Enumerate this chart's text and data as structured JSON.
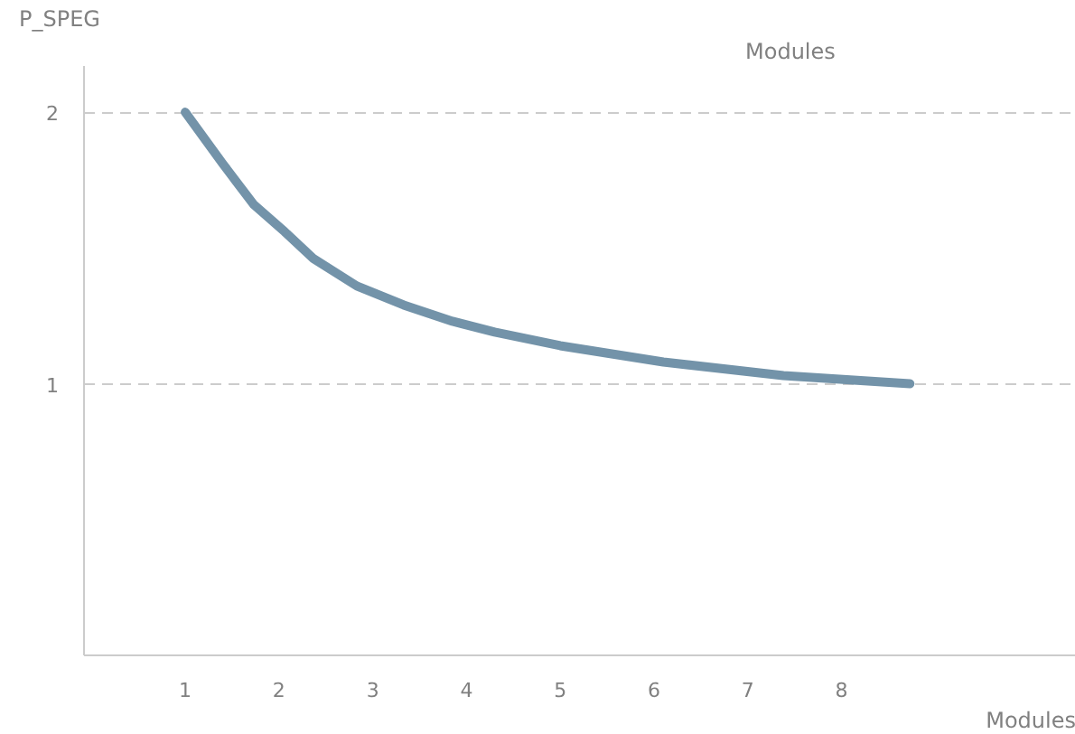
{
  "chart_data": {
    "type": "line",
    "xlabel": "Modules",
    "ylabel": "P_SPEG",
    "annotations": [
      "Modules"
    ],
    "x": [
      1,
      1.4,
      1.73,
      2.06,
      2.37,
      2.83,
      3.33,
      3.85,
      4.3,
      5.0,
      6.1,
      7.38,
      8.73
    ],
    "series": [
      {
        "color": "#7393a9",
        "values": [
          2.0,
          1.81,
          1.66,
          1.56,
          1.46,
          1.36,
          1.29,
          1.23,
          1.19,
          1.14,
          1.08,
          1.03,
          1.0
        ]
      }
    ],
    "xlim": [
      -0.08,
      10.5
    ],
    "ylim": [
      0,
      2.17
    ],
    "xticks": [
      1,
      2,
      3,
      4,
      5,
      6,
      7,
      8
    ],
    "yticks": [
      1,
      2
    ],
    "grid": "y",
    "line_style": "solid"
  }
}
